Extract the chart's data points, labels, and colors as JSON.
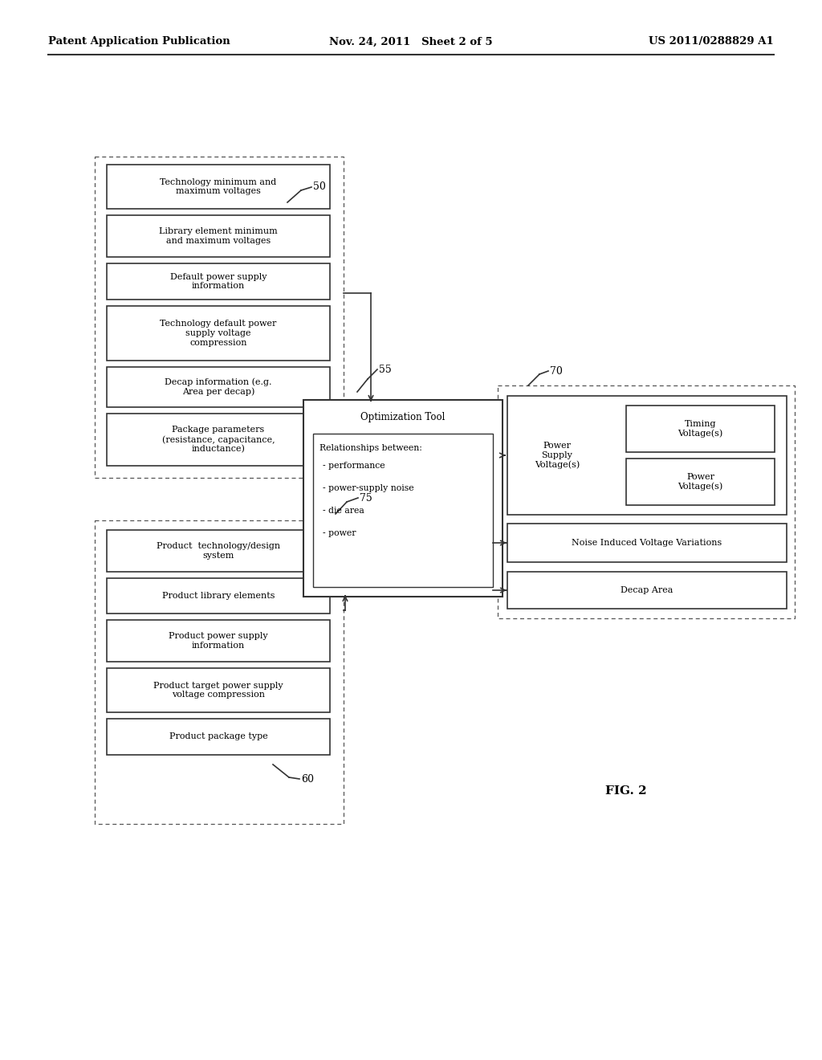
{
  "bg_color": "#ffffff",
  "header": {
    "left": "Patent Application Publication",
    "center": "Nov. 24, 2011   Sheet 2 of 5",
    "right": "US 2011/0288829 A1"
  },
  "fig_label": "FIG. 2",
  "top_group_boxes": [
    "Technology minimum and\nmaximum voltages",
    "Library element minimum\nand maximum voltages",
    "Default power supply\ninformation",
    "Technology default power\nsupply voltage\ncompression",
    "Decap information (e.g.\nArea per decap)",
    "Package parameters\n(resistance, capacitance,\ninductance)"
  ],
  "bottom_group_boxes": [
    "Product  technology/design\nsystem",
    "Product library elements",
    "Product power supply\ninformation",
    "Product target power supply\nvoltage compression",
    "Product package type"
  ],
  "opt_tool_title": "Optimization Tool",
  "opt_tool_sub_title": "Relationships between:",
  "opt_tool_sub_items": [
    "- performance",
    "- power-supply noise",
    "- die area",
    "- power"
  ],
  "psv_sub_boxes": [
    "Timing\nVoltage(s)",
    "Power\nVoltage(s)"
  ]
}
